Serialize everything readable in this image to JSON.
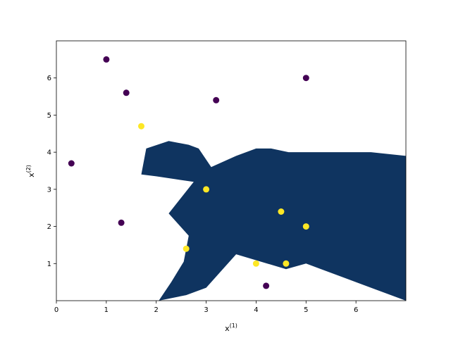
{
  "chart_data": {
    "type": "scatter",
    "title": "",
    "xlabel_base": "x",
    "xlabel_sup": "(1)",
    "ylabel_base": "x",
    "ylabel_sup": "(2)",
    "xlim": [
      0,
      7
    ],
    "ylim": [
      0,
      7
    ],
    "x_ticks": [
      0,
      1,
      2,
      3,
      4,
      5,
      6
    ],
    "y_ticks": [
      1,
      2,
      3,
      4,
      5,
      6
    ],
    "grid": false,
    "region_color": "#0f3460",
    "decision_region": [
      [
        2.05,
        0.0
      ],
      [
        2.6,
        0.15
      ],
      [
        3.0,
        0.35
      ],
      [
        3.6,
        1.25
      ],
      [
        4.6,
        0.85
      ],
      [
        5.0,
        1.0
      ],
      [
        5.8,
        0.6
      ],
      [
        6.4,
        0.3
      ],
      [
        7.0,
        0.0
      ],
      [
        7.0,
        3.9
      ],
      [
        6.3,
        4.0
      ],
      [
        5.2,
        4.0
      ],
      [
        4.65,
        4.0
      ],
      [
        4.3,
        4.1
      ],
      [
        4.0,
        4.1
      ],
      [
        3.6,
        3.9
      ],
      [
        3.1,
        3.6
      ],
      [
        2.85,
        4.1
      ],
      [
        2.65,
        4.2
      ],
      [
        2.25,
        4.3
      ],
      [
        1.8,
        4.1
      ],
      [
        1.7,
        3.4
      ],
      [
        2.0,
        3.35
      ],
      [
        2.75,
        3.2
      ],
      [
        2.25,
        2.35
      ],
      [
        2.65,
        1.75
      ],
      [
        2.55,
        1.05
      ],
      [
        2.3,
        0.5
      ]
    ],
    "series": [
      {
        "color": "#440154",
        "points": [
          [
            1.0,
            6.5
          ],
          [
            1.4,
            5.6
          ],
          [
            3.2,
            5.4
          ],
          [
            5.0,
            6.0
          ],
          [
            0.3,
            3.7
          ],
          [
            1.3,
            2.1
          ],
          [
            4.2,
            0.4
          ]
        ]
      },
      {
        "color": "#fde725",
        "points": [
          [
            1.7,
            4.7
          ],
          [
            3.0,
            3.0
          ],
          [
            4.5,
            2.4
          ],
          [
            5.0,
            2.0
          ],
          [
            2.6,
            1.4
          ],
          [
            4.0,
            1.0
          ],
          [
            4.6,
            1.0
          ]
        ]
      }
    ]
  }
}
